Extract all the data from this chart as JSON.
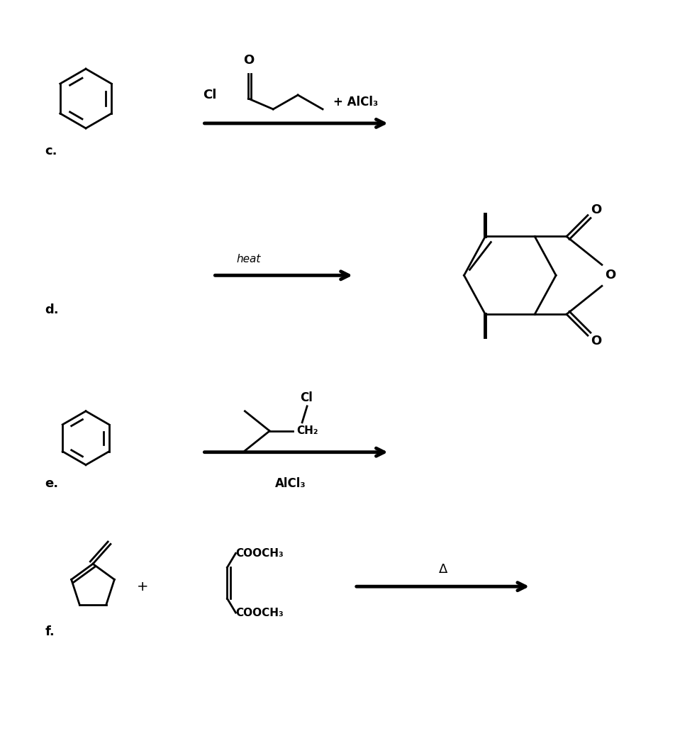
{
  "bg_color": "#ffffff",
  "label_c": "c.",
  "label_d": "d.",
  "label_e": "e.",
  "label_f": "f.",
  "reagent_c": "+ AlCl₃",
  "reagent_e": "AlCl₃",
  "reagent_d": "heat",
  "reagent_f": "Δ",
  "cl_text": "Cl",
  "ch2_text": "CH₂",
  "cooch3_text": "COOCH₃",
  "o_text": "O",
  "plus_text": "+"
}
